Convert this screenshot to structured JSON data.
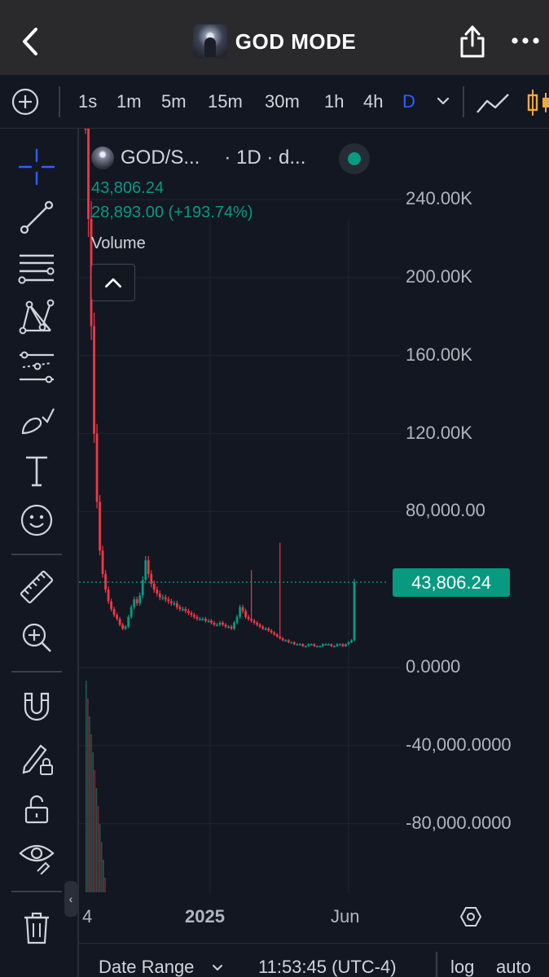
{
  "header": {
    "title": "GOD MODE",
    "back_icon": "chevron-left-icon",
    "share_icon": "share-icon",
    "more_icon": "more-horizontal-icon"
  },
  "toolbar": {
    "intervals": [
      "1s",
      "1m",
      "5m",
      "15m",
      "30m",
      "1h",
      "4h",
      "D"
    ],
    "active_interval": "D",
    "add_icon": "add-circle-icon"
  },
  "legend": {
    "symbol": "GOD/S...",
    "meta": "· 1D · d...",
    "last_price": "43,806.24",
    "change": "28,893.00 (+193.74%)",
    "volume_label": "Volume",
    "status_color": "#089981"
  },
  "price_badge": "43,806.24",
  "colors": {
    "up": "#089981",
    "down": "#f23645",
    "background": "#131722",
    "accent": "#2962ff"
  },
  "chart_data": {
    "type": "candlestick",
    "title": "",
    "y_ticks": [
      "240.00K",
      "200.00K",
      "160.00K",
      "120.00K",
      "80,000.00",
      "0.0000",
      "-40,000.0000",
      "-80,000.0000"
    ],
    "x_ticks": [
      "4",
      "2025",
      "Jun"
    ],
    "ylim": [
      -115000,
      262000
    ],
    "last_price": 43806.24,
    "series": [
      {
        "name": "GOD/S",
        "closes": [
          285000,
          230000,
          175000,
          120000,
          85000,
          60000,
          48000,
          40000,
          34000,
          30000,
          27000,
          25000,
          22000,
          20000,
          21000,
          26000,
          31000,
          35000,
          33000,
          37000,
          45000,
          55000,
          48000,
          43000,
          40000,
          38000,
          36000,
          36000,
          35000,
          34000,
          33000,
          33000,
          31000,
          30000,
          30000,
          29000,
          28000,
          27000,
          26000,
          25000,
          25000,
          25000,
          24000,
          24000,
          23000,
          22000,
          22000,
          23000,
          22000,
          21000,
          21000,
          20000,
          23000,
          26000,
          31000,
          29000,
          26000,
          25000,
          24000,
          23000,
          22000,
          21000,
          20000,
          20000,
          19000,
          18000,
          17000,
          16000,
          15000,
          14000,
          14000,
          13000,
          13000,
          12000,
          12000,
          12000,
          11000,
          11000,
          12000,
          12000,
          11000,
          11000,
          11000,
          12000,
          12000,
          12000,
          11000,
          11000,
          12000,
          12000,
          11000,
          12000,
          13000,
          14000,
          43806.24
        ]
      }
    ],
    "spike_highs": [
      {
        "index": 58,
        "high": 50000
      },
      {
        "index": 68,
        "high": 64000
      }
    ]
  },
  "footer": {
    "date_range": "Date Range",
    "clock": "11:53:45 (UTC-4)",
    "log": "log",
    "auto": "auto"
  },
  "left_tools": [
    "crosshair-icon",
    "trend-line-icon",
    "fib-retracement-icon",
    "pattern-icon",
    "prediction-icon",
    "brush-icon",
    "text-icon",
    "emoji-icon",
    "ruler-icon",
    "zoom-in-icon",
    "magnet-icon",
    "lock-drawing-icon",
    "unlock-icon",
    "eye-icon",
    "trash-icon"
  ]
}
